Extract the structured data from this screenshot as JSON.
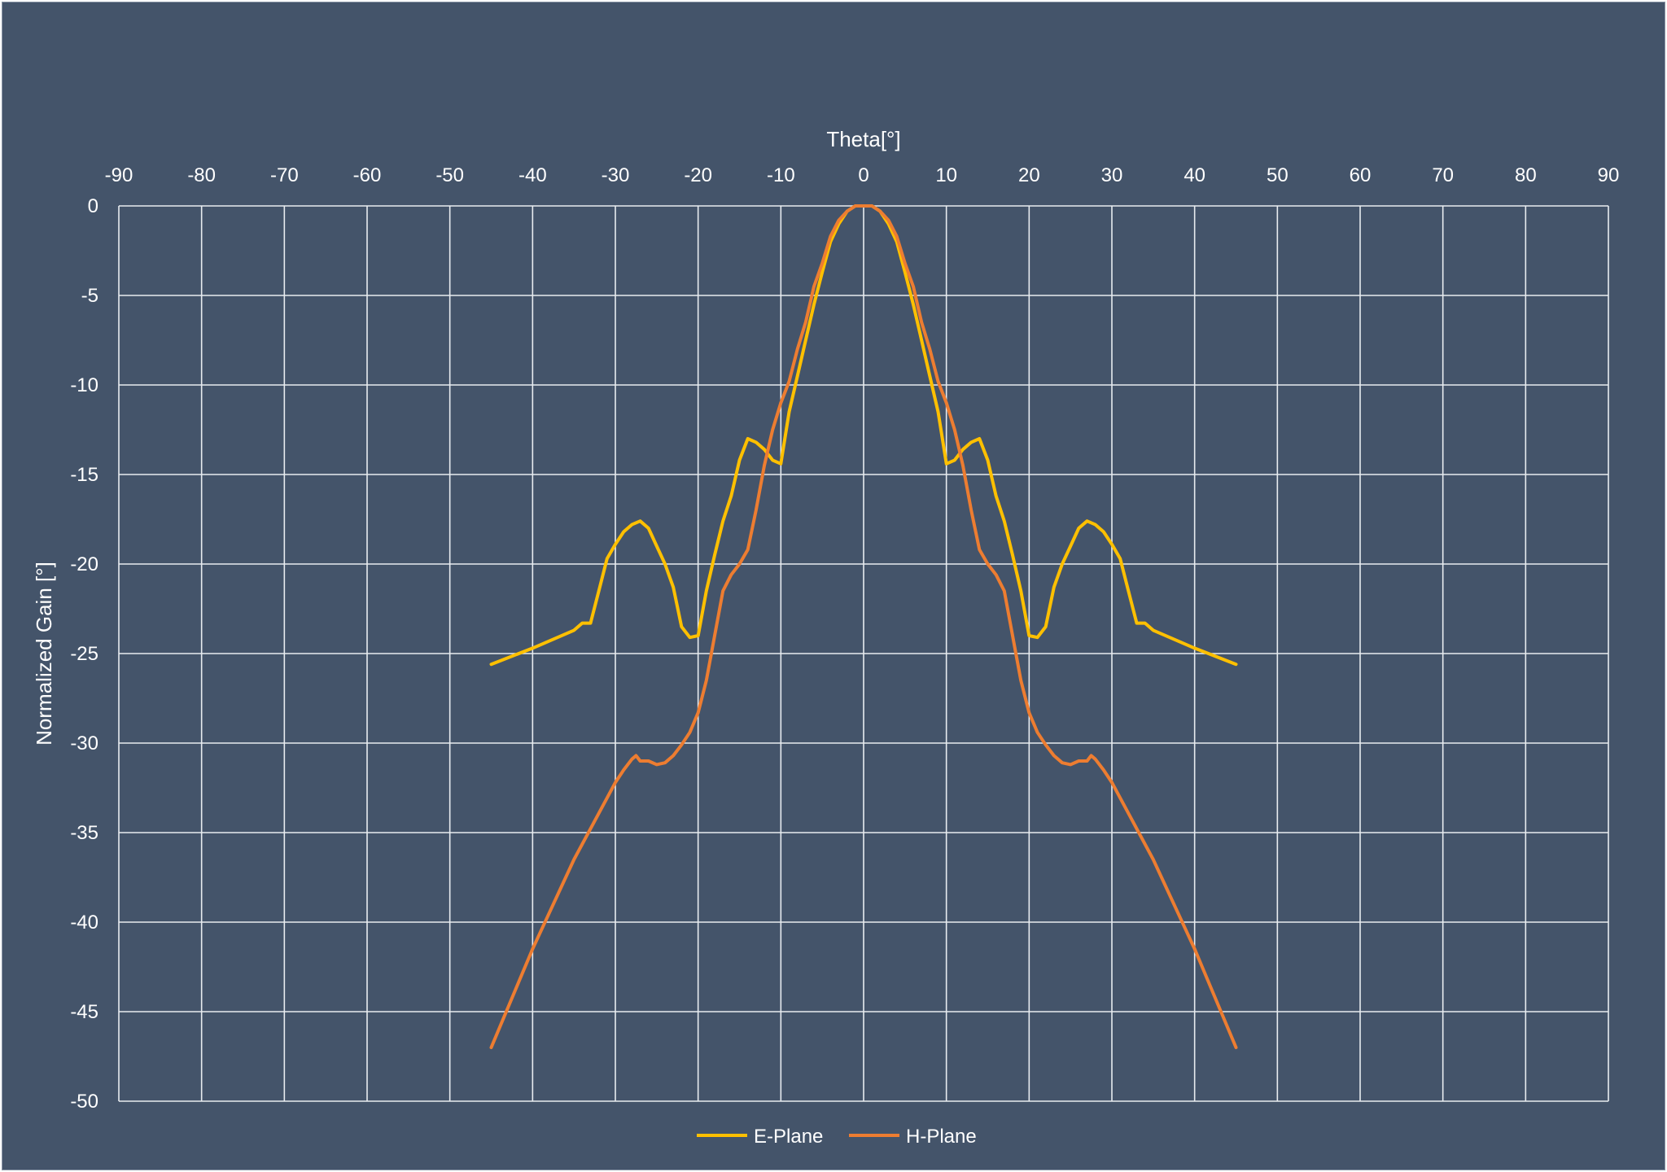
{
  "chart_data": {
    "type": "line",
    "title": "",
    "xlabel": "Theta[°]",
    "ylabel": "Normalized Gain [°]",
    "xlim": [
      -90,
      90
    ],
    "ylim": [
      -50,
      0
    ],
    "xticks": [
      -90,
      -80,
      -70,
      -60,
      -50,
      -40,
      -30,
      -20,
      -10,
      0,
      10,
      20,
      30,
      40,
      50,
      60,
      70,
      80,
      90
    ],
    "yticks": [
      0,
      -5,
      -10,
      -15,
      -20,
      -25,
      -30,
      -35,
      -40,
      -45,
      -50
    ],
    "x_axis_position": "top",
    "grid": true,
    "legend": "bottom-center",
    "series": [
      {
        "name": "E-Plane",
        "color": "#ffc000",
        "points": [
          [
            -45,
            -25.6
          ],
          [
            -40,
            -24.7
          ],
          [
            -35,
            -23.7
          ],
          [
            -34,
            -23.3
          ],
          [
            -33,
            -23.3
          ],
          [
            -32,
            -21.5
          ],
          [
            -31,
            -19.7
          ],
          [
            -30,
            -18.9
          ],
          [
            -29,
            -18.2
          ],
          [
            -28,
            -17.8
          ],
          [
            -27,
            -17.6
          ],
          [
            -26,
            -18.0
          ],
          [
            -25,
            -19.0
          ],
          [
            -24,
            -20.0
          ],
          [
            -23,
            -21.3
          ],
          [
            -22,
            -23.5
          ],
          [
            -21,
            -24.1
          ],
          [
            -20,
            -24.0
          ],
          [
            -19,
            -21.5
          ],
          [
            -18,
            -19.5
          ],
          [
            -17,
            -17.6
          ],
          [
            -16,
            -16.2
          ],
          [
            -15,
            -14.2
          ],
          [
            -14,
            -13.0
          ],
          [
            -13,
            -13.2
          ],
          [
            -12,
            -13.6
          ],
          [
            -11,
            -14.2
          ],
          [
            -10,
            -14.4
          ],
          [
            -9,
            -11.5
          ],
          [
            -8,
            -9.5
          ],
          [
            -7,
            -7.5
          ],
          [
            -6,
            -5.5
          ],
          [
            -5,
            -3.7
          ],
          [
            -4,
            -2.0
          ],
          [
            -3,
            -1.0
          ],
          [
            -2,
            -0.3
          ],
          [
            -1,
            0.0
          ],
          [
            0,
            0.0
          ],
          [
            1,
            0.0
          ],
          [
            2,
            -0.3
          ],
          [
            3,
            -1.0
          ],
          [
            4,
            -2.0
          ],
          [
            5,
            -3.7
          ],
          [
            6,
            -5.5
          ],
          [
            7,
            -7.5
          ],
          [
            8,
            -9.5
          ],
          [
            9,
            -11.5
          ],
          [
            10,
            -14.4
          ],
          [
            11,
            -14.2
          ],
          [
            12,
            -13.6
          ],
          [
            13,
            -13.2
          ],
          [
            14,
            -13.0
          ],
          [
            15,
            -14.2
          ],
          [
            16,
            -16.2
          ],
          [
            17,
            -17.6
          ],
          [
            18,
            -19.5
          ],
          [
            19,
            -21.5
          ],
          [
            20,
            -24.0
          ],
          [
            21,
            -24.1
          ],
          [
            22,
            -23.5
          ],
          [
            23,
            -21.3
          ],
          [
            24,
            -20.0
          ],
          [
            25,
            -19.0
          ],
          [
            26,
            -18.0
          ],
          [
            27,
            -17.6
          ],
          [
            28,
            -17.8
          ],
          [
            29,
            -18.2
          ],
          [
            30,
            -18.9
          ],
          [
            31,
            -19.7
          ],
          [
            32,
            -21.5
          ],
          [
            33,
            -23.3
          ],
          [
            34,
            -23.3
          ],
          [
            35,
            -23.7
          ],
          [
            40,
            -24.7
          ],
          [
            45,
            -25.6
          ]
        ]
      },
      {
        "name": "H-Plane",
        "color": "#ed7d31",
        "points": [
          [
            -45,
            -47.0
          ],
          [
            -40,
            -41.5
          ],
          [
            -35,
            -36.5
          ],
          [
            -30,
            -32.2
          ],
          [
            -29,
            -31.5
          ],
          [
            -28,
            -30.9
          ],
          [
            -27.5,
            -30.7
          ],
          [
            -27,
            -31.0
          ],
          [
            -26,
            -31.0
          ],
          [
            -25,
            -31.2
          ],
          [
            -24,
            -31.1
          ],
          [
            -23,
            -30.7
          ],
          [
            -22,
            -30.1
          ],
          [
            -21,
            -29.4
          ],
          [
            -20,
            -28.3
          ],
          [
            -19,
            -26.5
          ],
          [
            -18,
            -24.0
          ],
          [
            -17,
            -21.5
          ],
          [
            -16,
            -20.6
          ],
          [
            -15,
            -20.0
          ],
          [
            -14,
            -19.2
          ],
          [
            -13,
            -17.0
          ],
          [
            -12,
            -14.5
          ],
          [
            -11,
            -12.5
          ],
          [
            -10,
            -11.0
          ],
          [
            -9,
            -9.8
          ],
          [
            -8,
            -8.0
          ],
          [
            -7,
            -6.5
          ],
          [
            -6,
            -4.5
          ],
          [
            -5,
            -3.2
          ],
          [
            -4,
            -1.7
          ],
          [
            -3,
            -0.8
          ],
          [
            -2,
            -0.3
          ],
          [
            -1,
            0.0
          ],
          [
            0,
            0.0
          ],
          [
            1,
            0.0
          ],
          [
            2,
            -0.3
          ],
          [
            3,
            -0.8
          ],
          [
            4,
            -1.7
          ],
          [
            5,
            -3.2
          ],
          [
            6,
            -4.5
          ],
          [
            7,
            -6.5
          ],
          [
            8,
            -8.0
          ],
          [
            9,
            -9.8
          ],
          [
            10,
            -11.0
          ],
          [
            11,
            -12.5
          ],
          [
            12,
            -14.5
          ],
          [
            13,
            -17.0
          ],
          [
            14,
            -19.2
          ],
          [
            15,
            -20.0
          ],
          [
            16,
            -20.6
          ],
          [
            17,
            -21.5
          ],
          [
            18,
            -24.0
          ],
          [
            19,
            -26.5
          ],
          [
            20,
            -28.3
          ],
          [
            21,
            -29.4
          ],
          [
            22,
            -30.1
          ],
          [
            23,
            -30.7
          ],
          [
            24,
            -31.1
          ],
          [
            25,
            -31.2
          ],
          [
            26,
            -31.0
          ],
          [
            27,
            -31.0
          ],
          [
            27.5,
            -30.7
          ],
          [
            28,
            -30.9
          ],
          [
            29,
            -31.5
          ],
          [
            30,
            -32.2
          ],
          [
            35,
            -36.5
          ],
          [
            40,
            -41.5
          ],
          [
            45,
            -47.0
          ]
        ]
      }
    ]
  }
}
